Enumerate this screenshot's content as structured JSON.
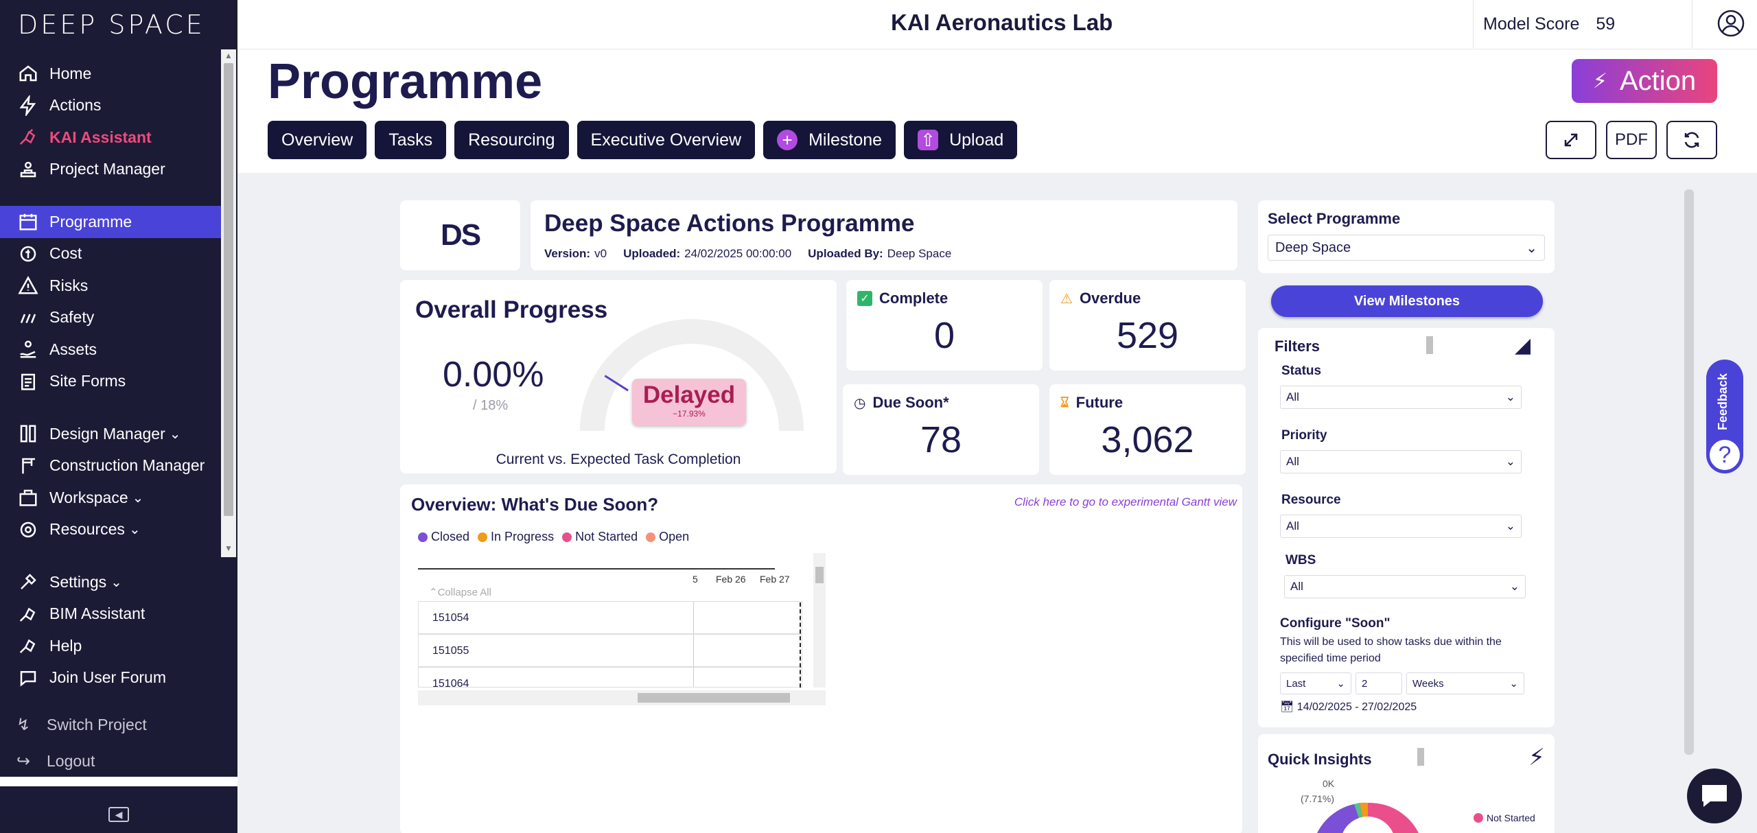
{
  "app": {
    "logo": "DEEP SPACE",
    "lab_title": "KAI Aeronautics Lab",
    "model_score_label": "Model Score",
    "model_score_value": "59"
  },
  "sidebar": {
    "items": [
      {
        "label": "Home",
        "icon": "home-icon"
      },
      {
        "label": "Actions",
        "icon": "bolt-icon"
      },
      {
        "label": "KAI Assistant",
        "icon": "kai-icon"
      },
      {
        "label": "Project Manager",
        "icon": "project-manager-icon"
      },
      {
        "label": "Programme",
        "icon": "calendar-icon"
      },
      {
        "label": "Cost",
        "icon": "cost-icon"
      },
      {
        "label": "Risks",
        "icon": "warning-icon"
      },
      {
        "label": "Safety",
        "icon": "safety-icon"
      },
      {
        "label": "Assets",
        "icon": "assets-icon"
      },
      {
        "label": "Site Forms",
        "icon": "forms-icon"
      },
      {
        "label": "Design Manager",
        "icon": "design-icon"
      },
      {
        "label": "Construction Manager",
        "icon": "crane-icon"
      },
      {
        "label": "Workspace",
        "icon": "workspace-icon"
      },
      {
        "label": "Resources",
        "icon": "resources-icon"
      },
      {
        "label": "Settings",
        "icon": "settings-icon"
      },
      {
        "label": "BIM Assistant",
        "icon": "bim-icon"
      },
      {
        "label": "Help",
        "icon": "help-icon"
      },
      {
        "label": "Join User Forum",
        "icon": "forum-icon"
      }
    ],
    "switch_project": "Switch Project",
    "logout": "Logout"
  },
  "header": {
    "title": "Programme",
    "tabs": [
      "Overview",
      "Tasks",
      "Resourcing",
      "Executive Overview",
      "Milestone",
      "Upload"
    ],
    "action_label": "Action",
    "pdf_label": "PDF"
  },
  "programme": {
    "logo_text": "DS",
    "title": "Deep Space Actions Programme",
    "version_label": "Version:",
    "version": "v0",
    "uploaded_label": "Uploaded:",
    "uploaded": "24/02/2025 00:00:00",
    "uploaded_by_label": "Uploaded By:",
    "uploaded_by": "Deep Space"
  },
  "progress": {
    "title": "Overall Progress",
    "value": "0.00%",
    "expected": "/ 18%",
    "status": "Delayed",
    "status_delta": "−17.93%",
    "caption": "Current vs. Expected Task Completion",
    "expected_fraction": 0.18
  },
  "stats": {
    "complete": {
      "label": "Complete",
      "value": "0"
    },
    "overdue": {
      "label": "Overdue",
      "value": "529"
    },
    "due_soon": {
      "label": "Due Soon*",
      "value": "78"
    },
    "future": {
      "label": "Future",
      "value": "3,062"
    }
  },
  "overview": {
    "title": "Overview: What's Due Soon?",
    "gantt_link": "Click here to go to experimental Gantt view",
    "legend": [
      {
        "label": "Closed",
        "color": "#7b4fd6"
      },
      {
        "label": "In Progress",
        "color": "#f29a1a"
      },
      {
        "label": "Not Started",
        "color": "#ea4f8c"
      },
      {
        "label": "Open",
        "color": "#f7907a"
      }
    ],
    "ticks": [
      "5",
      "Feb 26",
      "Feb 27"
    ],
    "collapse_all": "Collapse All",
    "rows": [
      "151054",
      "151055",
      "151064"
    ]
  },
  "filters": {
    "select_programme_label": "Select Programme",
    "select_programme_value": "Deep Space",
    "view_milestones": "View Milestones",
    "title": "Filters",
    "status_label": "Status",
    "status_value": "All",
    "priority_label": "Priority",
    "priority_value": "All",
    "resource_label": "Resource",
    "resource_value": "All",
    "wbs_label": "WBS",
    "wbs_value": "All",
    "soon_title": "Configure \"Soon\"",
    "soon_desc": "This will be used to show tasks due within the specified time period",
    "soon_mode": "Last",
    "soon_count": "2",
    "soon_unit": "Weeks",
    "date_range": "14/02/2025 - 27/02/2025"
  },
  "insights": {
    "title": "Quick Insights",
    "pie_label_value": "0K",
    "pie_label_pct": "(7.71%)",
    "legend_item": "Not Started"
  },
  "feedback_label": "Feedback",
  "colors": {
    "sidebar_bg": "#1b1b36",
    "accent": "#4a43d8",
    "kai": "#ef4a7c",
    "delayed_bg": "#f6c3d6"
  }
}
